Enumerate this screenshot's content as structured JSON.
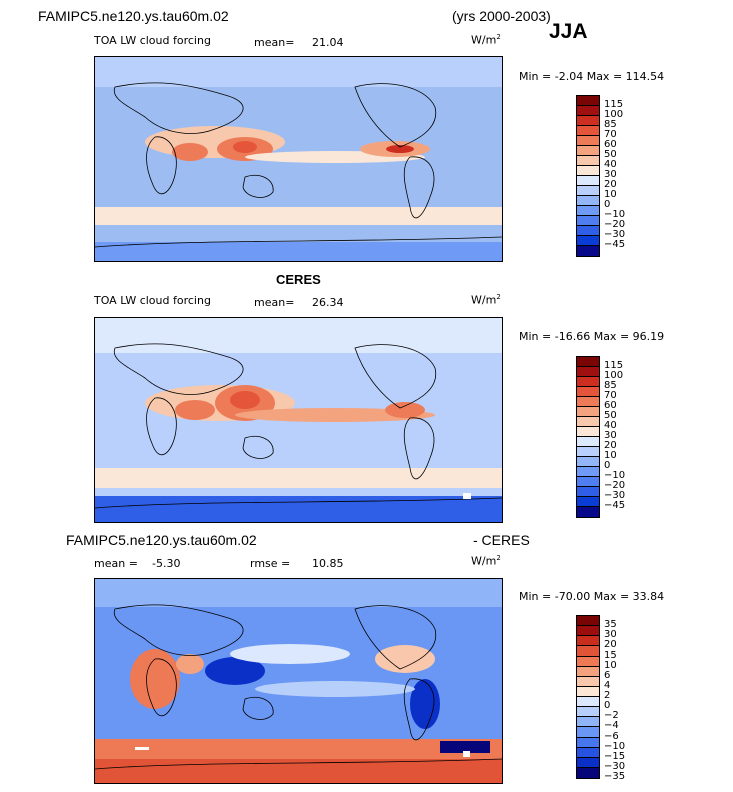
{
  "header": {
    "case_title": "FAMIPC5.ne120.ys.tau60m.02",
    "years": "(yrs 2000-2003)",
    "season": "JJA"
  },
  "colors": {
    "upper_scale": [
      "#08088a",
      "#0a3cd6",
      "#2f5fe6",
      "#4f7ef0",
      "#6f9af5",
      "#93b6f8",
      "#b8d0fb",
      "#dde9fd",
      "#fbe7d7",
      "#f8c8ac",
      "#f4a37f",
      "#ee7b57",
      "#e4553a",
      "#cc2f1f",
      "#a01010",
      "#7a0505"
    ],
    "diff_scale": [
      "#06067a",
      "#0a30c8",
      "#2653e0",
      "#4777ee",
      "#6a97f4",
      "#90b4f8",
      "#b6cffb",
      "#dce8fd",
      "#fce6d6",
      "#f9c7ab",
      "#f4a27e",
      "#ed7a55",
      "#e25438",
      "#c92d1c",
      "#9c0d0d",
      "#780404"
    ]
  },
  "chart_data": [
    {
      "type": "heatmap",
      "id": "model",
      "title": "",
      "field": "TOA LW cloud forcing",
      "mean_label": "mean=",
      "mean": "21.04",
      "units": "W/m",
      "units_sup": "2",
      "min_label": "Min =",
      "min": "-2.04",
      "max_label": "Max =",
      "max": "114.54",
      "levels": [
        "115",
        "100",
        "85",
        "70",
        "60",
        "50",
        "40",
        "30",
        "20",
        "10",
        "0",
        "−10",
        "−20",
        "−30",
        "−45"
      ]
    },
    {
      "type": "heatmap",
      "id": "obs",
      "title": "CERES",
      "field": "TOA LW cloud forcing",
      "mean_label": "mean=",
      "mean": "26.34",
      "units": "W/m",
      "units_sup": "2",
      "min_label": "Min =",
      "min": "-16.66",
      "max_label": "Max =",
      "max": "96.19",
      "levels": [
        "115",
        "100",
        "85",
        "70",
        "60",
        "50",
        "40",
        "30",
        "20",
        "10",
        "0",
        "−10",
        "−20",
        "−30",
        "−45"
      ]
    },
    {
      "type": "heatmap",
      "id": "diff",
      "title_left": "FAMIPC5.ne120.ys.tau60m.02",
      "title_right": "- CERES",
      "mean_label": "mean =",
      "mean": "-5.30",
      "rmse_label": "rmse =",
      "rmse": "10.85",
      "units": "W/m",
      "units_sup": "2",
      "min_label": "Min =",
      "min": "-70.00",
      "max_label": "Max =",
      "max": "33.84",
      "levels": [
        "35",
        "30",
        "20",
        "15",
        "10",
        "6",
        "4",
        "2",
        "0",
        "−2",
        "−4",
        "−6",
        "−10",
        "−15",
        "−30",
        "−35"
      ]
    }
  ]
}
